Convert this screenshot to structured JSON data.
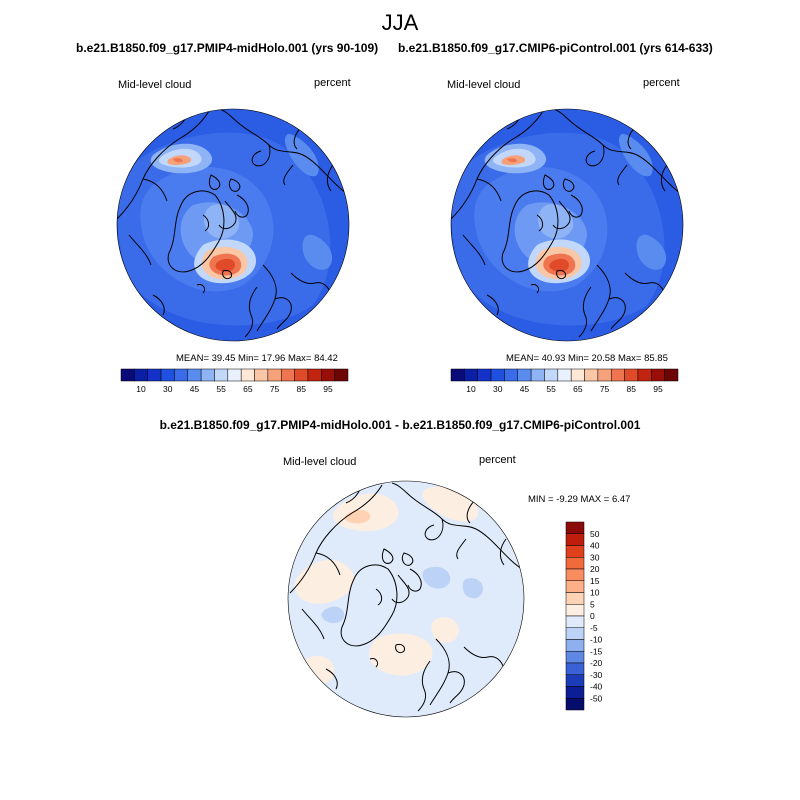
{
  "season": "JJA",
  "panels": [
    {
      "title": "b.e21.B1850.f09_g17.PMIP4-midHolo.001 (yrs 90-109)",
      "variable": "Mid-level cloud",
      "units": "percent",
      "stats_text": "MEAN=  39.45  Min=  17.96  Max=  84.42",
      "mean": 39.45,
      "min": 17.96,
      "max": 84.42
    },
    {
      "title": "b.e21.B1850.f09_g17.CMIP6-piControl.001 (yrs 614-633)",
      "variable": "Mid-level cloud",
      "units": "percent",
      "stats_text": "MEAN=  40.93  Min=  20.58  Max=  85.85",
      "mean": 40.93,
      "min": 20.58,
      "max": 85.85
    }
  ],
  "abs_colorbar": {
    "tick_labels": [
      "10",
      "30",
      "45",
      "55",
      "65",
      "75",
      "85",
      "95"
    ],
    "colors": [
      "#0a0a78",
      "#0b1fa6",
      "#1432c8",
      "#2050e0",
      "#3a6cea",
      "#5a8cf0",
      "#8fb4f6",
      "#c2d8fa",
      "#e8f1fd",
      "#fde7d7",
      "#f9c6a6",
      "#f5a27a",
      "#ef7550",
      "#e04a28",
      "#c22412",
      "#9a0e08",
      "#6e0505"
    ]
  },
  "difference_panel": {
    "title": "b.e21.B1850.f09_g17.PMIP4-midHolo.001 - b.e21.B1850.f09_g17.CMIP6-piControl.001",
    "variable": "Mid-level cloud",
    "units": "percent",
    "stats_text": "MIN =  -9.29 MAX =   6.47",
    "min": -9.29,
    "max": 6.47
  },
  "diff_colorbar": {
    "tick_labels": [
      "50",
      "40",
      "30",
      "20",
      "15",
      "10",
      "5",
      "0",
      "-5",
      "-10",
      "-15",
      "-20",
      "-30",
      "-40",
      "-50"
    ],
    "colors": [
      "#8b0a0a",
      "#c01e0c",
      "#e0401c",
      "#f06a3c",
      "#f88e60",
      "#fbb088",
      "#fdd2b5",
      "#fdeee2",
      "#dfeafb",
      "#bcd2f6",
      "#8fb0ee",
      "#5f88e4",
      "#3a62d6",
      "#1c3cba",
      "#0b1e96",
      "#060c6a"
    ]
  }
}
